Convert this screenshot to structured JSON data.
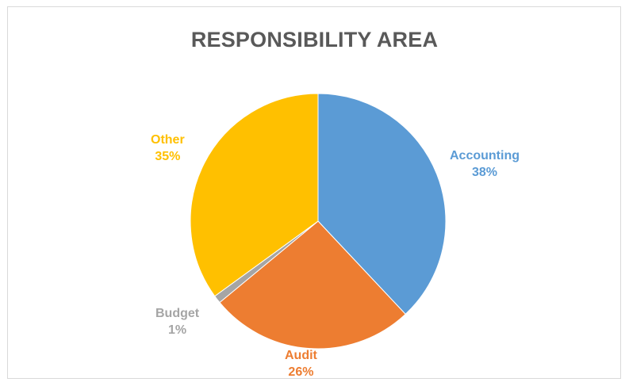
{
  "chart_data": {
    "type": "pie",
    "title": "RESPONSIBILITY AREA",
    "slices": [
      {
        "label": "Accounting",
        "value": 38,
        "value_label": "38%",
        "color": "#5b9bd5"
      },
      {
        "label": "Audit",
        "value": 26,
        "value_label": "26%",
        "color": "#ed7d31"
      },
      {
        "label": "Budget",
        "value": 1,
        "value_label": "1%",
        "color": "#a5a5a5"
      },
      {
        "label": "Other",
        "value": 35,
        "value_label": "35%",
        "color": "#ffc000"
      }
    ],
    "start_angle": "12 o'clock",
    "direction": "clockwise",
    "legend": "none",
    "data_labels": "outside, colored by slice"
  }
}
